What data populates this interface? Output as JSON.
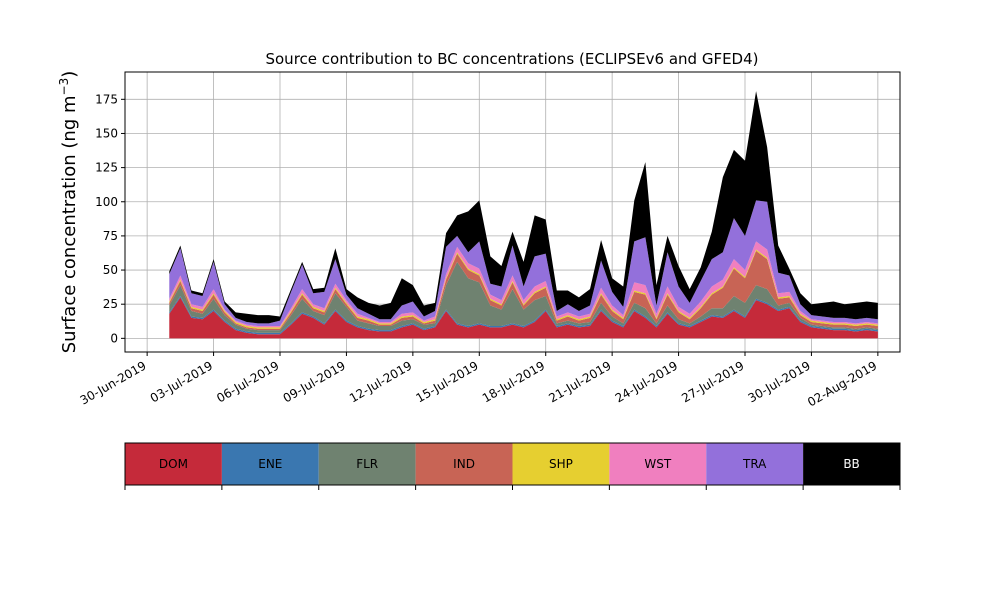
{
  "chart_data": {
    "type": "area",
    "stacked": true,
    "title": "Source contribution to BC concentrations (ECLIPSEv6 and GFED4)",
    "ylabel": "Surface concentration (ng m",
    "ylabel_sup": "−3",
    "ylabel_close": ")",
    "ylim": [
      -10,
      195
    ],
    "yticks": [
      0,
      25,
      50,
      75,
      100,
      125,
      150,
      175
    ],
    "xlim": [
      "2019-06-29",
      "2019-08-03"
    ],
    "xticks": [
      "30-Jun-2019",
      "03-Jul-2019",
      "06-Jul-2019",
      "09-Jul-2019",
      "12-Jul-2019",
      "15-Jul-2019",
      "18-Jul-2019",
      "21-Jul-2019",
      "24-Jul-2019",
      "27-Jul-2019",
      "30-Jul-2019",
      "02-Aug-2019"
    ],
    "grid": true,
    "legend_position": "bottom",
    "x": [
      "2019-07-01",
      "2019-07-01 12:00",
      "2019-07-02",
      "2019-07-02 12:00",
      "2019-07-03",
      "2019-07-03 12:00",
      "2019-07-04",
      "2019-07-04 12:00",
      "2019-07-05",
      "2019-07-05 12:00",
      "2019-07-06",
      "2019-07-06 12:00",
      "2019-07-07",
      "2019-07-07 12:00",
      "2019-07-08",
      "2019-07-08 12:00",
      "2019-07-09",
      "2019-07-09 12:00",
      "2019-07-10",
      "2019-07-10 12:00",
      "2019-07-11",
      "2019-07-11 12:00",
      "2019-07-12",
      "2019-07-12 12:00",
      "2019-07-13",
      "2019-07-13 12:00",
      "2019-07-14",
      "2019-07-14 12:00",
      "2019-07-15",
      "2019-07-15 12:00",
      "2019-07-16",
      "2019-07-16 12:00",
      "2019-07-17",
      "2019-07-17 12:00",
      "2019-07-18",
      "2019-07-18 12:00",
      "2019-07-19",
      "2019-07-19 12:00",
      "2019-07-20",
      "2019-07-20 12:00",
      "2019-07-21",
      "2019-07-21 12:00",
      "2019-07-22",
      "2019-07-22 12:00",
      "2019-07-23",
      "2019-07-23 12:00",
      "2019-07-24",
      "2019-07-24 12:00",
      "2019-07-25",
      "2019-07-25 12:00",
      "2019-07-26",
      "2019-07-26 12:00",
      "2019-07-27",
      "2019-07-27 12:00",
      "2019-07-28",
      "2019-07-28 12:00",
      "2019-07-29",
      "2019-07-29 12:00",
      "2019-07-30",
      "2019-07-30 12:00",
      "2019-07-31",
      "2019-07-31 12:00",
      "2019-08-01",
      "2019-08-01 12:00",
      "2019-08-02"
    ],
    "series": [
      {
        "name": "DOM",
        "color": "#c52a3a",
        "values": [
          18,
          30,
          15,
          14,
          20,
          12,
          6,
          4,
          3,
          3,
          3,
          10,
          18,
          15,
          10,
          20,
          12,
          8,
          6,
          5,
          5,
          8,
          10,
          6,
          8,
          20,
          10,
          8,
          10,
          8,
          8,
          10,
          8,
          12,
          20,
          8,
          10,
          8,
          9,
          20,
          12,
          8,
          20,
          15,
          8,
          18,
          10,
          8,
          12,
          16,
          15,
          20,
          15,
          28,
          25,
          20,
          22,
          12,
          8,
          7,
          6,
          6,
          5,
          6,
          5
        ]
      },
      {
        "name": "ENE",
        "color": "#3a77b0",
        "values": [
          1,
          1,
          1,
          1,
          1,
          1,
          1,
          1,
          1,
          1,
          1,
          1,
          1,
          1,
          1,
          1,
          1,
          1,
          1,
          1,
          1,
          1,
          1,
          1,
          1,
          1,
          1,
          1,
          1,
          1,
          1,
          1,
          1,
          1,
          1,
          1,
          1,
          1,
          1,
          1,
          1,
          1,
          1,
          1,
          1,
          1,
          1,
          1,
          1,
          1,
          1,
          1,
          1,
          1,
          1,
          1,
          1,
          1,
          1,
          1,
          1,
          1,
          1,
          1,
          1
        ]
      },
      {
        "name": "FLR",
        "color": "#6f8270",
        "values": [
          5,
          8,
          4,
          3,
          8,
          4,
          3,
          2,
          2,
          2,
          2,
          6,
          10,
          4,
          6,
          12,
          10,
          4,
          4,
          3,
          3,
          4,
          3,
          3,
          2,
          18,
          45,
          35,
          30,
          15,
          12,
          25,
          12,
          15,
          10,
          2,
          2,
          2,
          2,
          5,
          3,
          2,
          5,
          6,
          2,
          5,
          3,
          2,
          3,
          5,
          6,
          10,
          10,
          10,
          10,
          3,
          3,
          2,
          1,
          1,
          1,
          1,
          1,
          1,
          1
        ]
      },
      {
        "name": "IND",
        "color": "#c86455",
        "values": [
          2,
          3,
          2,
          2,
          3,
          2,
          1,
          1,
          1,
          1,
          1,
          2,
          3,
          2,
          2,
          3,
          2,
          2,
          2,
          1,
          1,
          2,
          2,
          1,
          2,
          4,
          6,
          6,
          5,
          4,
          3,
          5,
          3,
          5,
          6,
          2,
          3,
          2,
          3,
          6,
          4,
          3,
          8,
          10,
          3,
          8,
          5,
          3,
          6,
          10,
          15,
          20,
          18,
          25,
          22,
          5,
          4,
          2,
          2,
          2,
          2,
          2,
          2,
          2,
          2
        ]
      },
      {
        "name": "SHP",
        "color": "#e6cf30",
        "values": [
          1,
          1,
          1,
          1,
          1,
          1,
          1,
          1,
          1,
          1,
          1,
          1,
          1,
          1,
          1,
          1,
          1,
          1,
          1,
          1,
          1,
          1,
          1,
          1,
          1,
          1,
          1,
          1,
          1,
          1,
          1,
          1,
          1,
          1,
          1,
          1,
          1,
          1,
          1,
          1,
          1,
          1,
          1,
          1,
          1,
          1,
          1,
          1,
          1,
          1,
          1,
          1,
          1,
          1,
          1,
          1,
          1,
          1,
          1,
          1,
          1,
          1,
          1,
          1,
          1
        ]
      },
      {
        "name": "WST",
        "color": "#f07fbf",
        "values": [
          2,
          3,
          2,
          2,
          3,
          1,
          1,
          1,
          1,
          1,
          1,
          2,
          3,
          2,
          2,
          3,
          2,
          2,
          1,
          1,
          1,
          2,
          2,
          1,
          2,
          3,
          4,
          4,
          4,
          3,
          3,
          4,
          3,
          4,
          4,
          2,
          2,
          2,
          2,
          4,
          3,
          2,
          6,
          6,
          3,
          5,
          3,
          3,
          4,
          5,
          5,
          6,
          5,
          6,
          6,
          3,
          3,
          2,
          1,
          1,
          1,
          1,
          1,
          1,
          1
        ]
      },
      {
        "name": "TRA",
        "color": "#9370db",
        "values": [
          18,
          20,
          8,
          8,
          20,
          4,
          2,
          2,
          2,
          2,
          4,
          12,
          18,
          8,
          12,
          18,
          4,
          4,
          3,
          2,
          2,
          6,
          8,
          3,
          4,
          20,
          8,
          8,
          20,
          8,
          10,
          22,
          10,
          22,
          20,
          4,
          6,
          4,
          6,
          20,
          10,
          6,
          30,
          35,
          6,
          25,
          15,
          8,
          15,
          20,
          20,
          30,
          25,
          30,
          35,
          15,
          12,
          5,
          3,
          3,
          3,
          3,
          3,
          3,
          3
        ]
      },
      {
        "name": "BB",
        "color": "#000000",
        "values": [
          2,
          2,
          2,
          2,
          2,
          2,
          4,
          6,
          6,
          6,
          3,
          2,
          2,
          3,
          3,
          8,
          4,
          8,
          8,
          10,
          12,
          20,
          12,
          8,
          6,
          10,
          15,
          30,
          30,
          20,
          15,
          10,
          18,
          30,
          25,
          15,
          10,
          10,
          12,
          15,
          10,
          15,
          30,
          55,
          15,
          12,
          15,
          10,
          10,
          20,
          55,
          50,
          55,
          80,
          40,
          20,
          5,
          8,
          8,
          10,
          12,
          10,
          12,
          12,
          12
        ]
      }
    ]
  }
}
